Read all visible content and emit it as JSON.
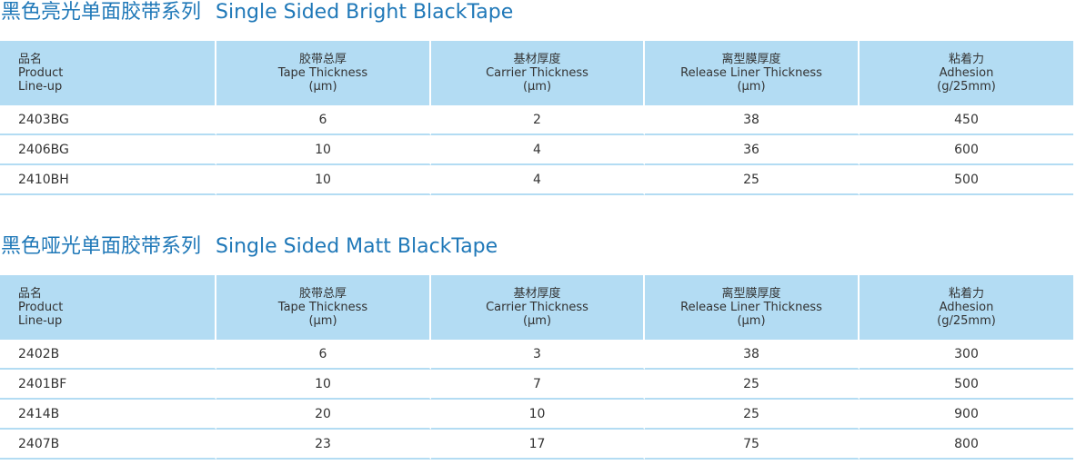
{
  "headers": [
    {
      "zh": "品名",
      "en1": "Product",
      "en2": "Line-up"
    },
    {
      "zh": "胶带总厚",
      "en1": "Tape Thickness",
      "en2": "(μm)"
    },
    {
      "zh": "基材厚度",
      "en1": "Carrier Thickness",
      "en2": "(μm)"
    },
    {
      "zh": "离型膜厚度",
      "en1": "Release Liner Thickness",
      "en2": "(μm)"
    },
    {
      "zh": "粘着力",
      "en1": "Adhesion",
      "en2": "(g/25mm)"
    }
  ],
  "sections": [
    {
      "title_zh": "黑色亮光单面胶带系列",
      "title_en": "Single Sided Bright BlackTape",
      "rows": [
        [
          "2403BG",
          "6",
          "2",
          "38",
          "450"
        ],
        [
          "2406BG",
          "10",
          "4",
          "36",
          "600"
        ],
        [
          "2410BH",
          "10",
          "4",
          "25",
          "500"
        ]
      ]
    },
    {
      "title_zh": "黑色哑光单面胶带系列",
      "title_en": "Single Sided Matt BlackTape",
      "rows": [
        [
          "2402B",
          "6",
          "3",
          "38",
          "300"
        ],
        [
          "2401BF",
          "10",
          "7",
          "25",
          "500"
        ],
        [
          "2414B",
          "20",
          "10",
          "25",
          "900"
        ],
        [
          "2407B",
          "23",
          "17",
          "75",
          "800"
        ]
      ]
    }
  ]
}
